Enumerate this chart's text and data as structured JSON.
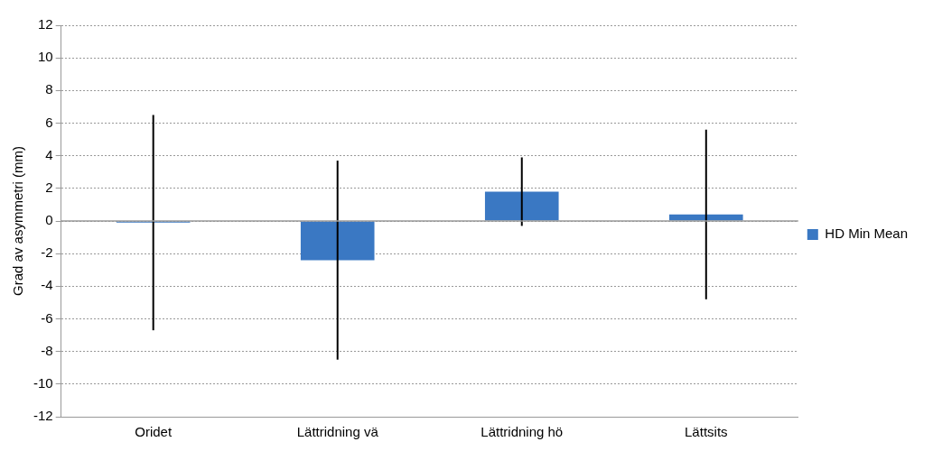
{
  "chart_data": {
    "type": "bar",
    "ylabel": "Grad av asymmetri (mm)",
    "categories": [
      "Oridet",
      "Lättridning vä",
      "Lättridning hö",
      "Lättsits"
    ],
    "series": [
      {
        "name": "HD Min Mean",
        "color": "#3a78c3",
        "values": [
          -0.1,
          -2.4,
          1.8,
          0.4
        ],
        "errors": [
          6.6,
          6.1,
          2.1,
          5.2
        ]
      }
    ],
    "ylim": [
      -12,
      12
    ],
    "yticks": [
      -12,
      -10,
      -8,
      -6,
      -4,
      -2,
      0,
      2,
      4,
      6,
      8,
      10,
      12
    ],
    "grid": "y",
    "legend": "right"
  }
}
